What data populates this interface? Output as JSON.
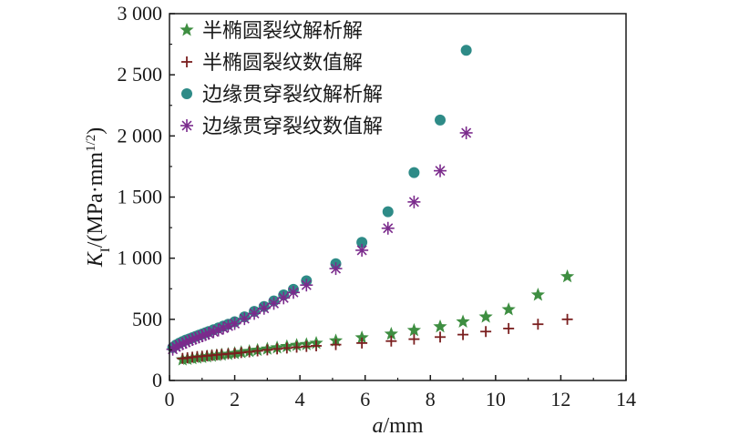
{
  "chart_data": {
    "type": "scatter",
    "title": "",
    "xlabel": {
      "italic": "a",
      "rest": "/mm"
    },
    "ylabel": {
      "italic": "K",
      "sub": "I",
      "rest": "/(MPa·mm",
      "sup": "1/2",
      "close": ")"
    },
    "xlim": [
      0,
      14
    ],
    "ylim": [
      0,
      3000
    ],
    "xticks": [
      0,
      2,
      4,
      6,
      8,
      10,
      12,
      14
    ],
    "xtick_labels": [
      "0",
      "2",
      "4",
      "6",
      "8",
      "10",
      "12",
      "14"
    ],
    "yticks": [
      0,
      500,
      1000,
      1500,
      2000,
      2500,
      3000
    ],
    "ytick_labels": [
      "0",
      "500",
      "1 000",
      "1 500",
      "2 000",
      "2 500",
      "3 000"
    ],
    "grid": false,
    "legend_position": "top-left",
    "series": [
      {
        "name": "半椭圆裂纹解析解",
        "marker": "star",
        "color": "#3e8e41",
        "x": [
          0.4,
          0.55,
          0.7,
          0.85,
          1.0,
          1.15,
          1.3,
          1.45,
          1.6,
          1.8,
          2.0,
          2.2,
          2.45,
          2.7,
          3.0,
          3.3,
          3.6,
          3.9,
          4.2,
          4.5,
          5.1,
          5.9,
          6.8,
          7.5,
          8.3,
          9.0,
          9.7,
          10.4,
          11.3,
          12.2
        ],
        "y": [
          170,
          175,
          180,
          185,
          190,
          195,
          200,
          205,
          210,
          215,
          222,
          230,
          238,
          248,
          258,
          268,
          278,
          288,
          295,
          305,
          325,
          350,
          380,
          410,
          440,
          480,
          520,
          580,
          700,
          850
        ]
      },
      {
        "name": "半椭圆裂纹数值解",
        "marker": "plus",
        "color": "#7a1f1f",
        "x": [
          0.4,
          0.55,
          0.7,
          0.85,
          1.0,
          1.15,
          1.3,
          1.45,
          1.6,
          1.8,
          2.0,
          2.2,
          2.45,
          2.7,
          3.0,
          3.3,
          3.6,
          3.9,
          4.2,
          4.5,
          5.1,
          5.9,
          6.8,
          7.5,
          8.3,
          9.0,
          9.7,
          10.4,
          11.3,
          12.2
        ],
        "y": [
          180,
          185,
          190,
          195,
          198,
          202,
          206,
          210,
          213,
          218,
          222,
          228,
          234,
          242,
          250,
          258,
          265,
          272,
          278,
          283,
          293,
          306,
          322,
          338,
          355,
          375,
          400,
          425,
          460,
          500
        ]
      },
      {
        "name": "边缘贯穿裂纹解析解",
        "marker": "circle",
        "color": "#2e8b87",
        "x": [
          0.1,
          0.2,
          0.3,
          0.4,
          0.5,
          0.6,
          0.7,
          0.8,
          0.9,
          1.0,
          1.1,
          1.2,
          1.35,
          1.5,
          1.65,
          1.8,
          2.0,
          2.3,
          2.6,
          2.9,
          3.2,
          3.5,
          3.8,
          4.2,
          5.1,
          5.9,
          6.7,
          7.5,
          8.3,
          9.1
        ],
        "y": [
          270,
          290,
          305,
          318,
          330,
          340,
          350,
          360,
          370,
          380,
          390,
          400,
          415,
          430,
          445,
          460,
          480,
          520,
          565,
          605,
          650,
          700,
          745,
          815,
          955,
          1130,
          1380,
          1700,
          2130,
          2700
        ]
      },
      {
        "name": "边缘贯穿裂纹数值解",
        "marker": "asterisk",
        "color": "#7b2b8c",
        "x": [
          0.1,
          0.2,
          0.3,
          0.4,
          0.5,
          0.6,
          0.7,
          0.8,
          0.9,
          1.0,
          1.1,
          1.2,
          1.35,
          1.5,
          1.65,
          1.8,
          2.0,
          2.3,
          2.6,
          2.9,
          3.2,
          3.5,
          3.8,
          4.2,
          5.1,
          5.9,
          6.7,
          7.5,
          8.3,
          9.1
        ],
        "y": [
          255,
          275,
          290,
          300,
          312,
          325,
          335,
          345,
          355,
          365,
          375,
          385,
          398,
          412,
          428,
          445,
          465,
          505,
          548,
          590,
          630,
          675,
          720,
          780,
          915,
          1065,
          1245,
          1460,
          1715,
          2025
        ]
      }
    ]
  }
}
